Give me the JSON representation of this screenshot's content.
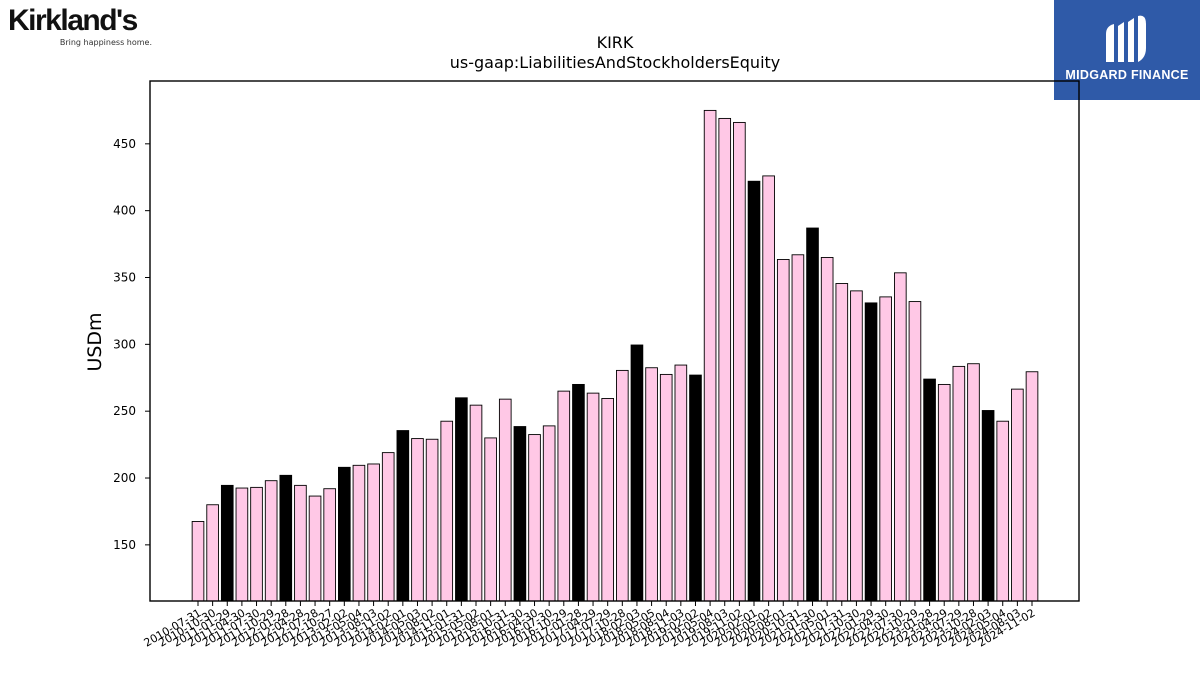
{
  "logos": {
    "kirklands": {
      "name": "Kirkland's",
      "tagline": "Bring happiness home."
    },
    "midgard": {
      "name": "MIDGARD FINANCE"
    }
  },
  "colors": {
    "annual": "#000000",
    "quarter": "#ffc8e6",
    "outline": "#000000"
  },
  "chart_data": {
    "type": "bar",
    "title": "KIRK",
    "subtitle": "us-gaap:LiabilitiesAndStockholdersEquity",
    "xlabel": "",
    "ylabel": "USDm",
    "ylim": [
      108,
      497
    ],
    "yticks": [
      150,
      200,
      250,
      300,
      350,
      400,
      450
    ],
    "grid": false,
    "categories": [
      "2010-07-31",
      "2010-10-30",
      "2011-01-29",
      "2011-04-30",
      "2011-07-30",
      "2011-10-29",
      "2012-01-28",
      "2012-04-28",
      "2012-07-28",
      "2012-10-27",
      "2013-02-02",
      "2013-05-04",
      "2013-08-03",
      "2013-11-02",
      "2014-02-01",
      "2014-05-03",
      "2014-08-02",
      "2014-11-01",
      "2015-01-31",
      "2015-05-02",
      "2015-08-01",
      "2015-10-31",
      "2016-01-30",
      "2016-04-30",
      "2016-07-30",
      "2016-10-29",
      "2017-01-28",
      "2017-04-29",
      "2017-07-29",
      "2017-10-28",
      "2018-02-03",
      "2018-05-05",
      "2018-08-04",
      "2018-11-03",
      "2019-02-02",
      "2019-05-04",
      "2019-08-03",
      "2019-11-02",
      "2020-02-01",
      "2020-05-02",
      "2020-08-01",
      "2020-10-31",
      "2021-01-30",
      "2021-05-01",
      "2021-07-31",
      "2021-10-30",
      "2022-01-29",
      "2022-04-30",
      "2022-07-30",
      "2022-10-29",
      "2023-01-28",
      "2023-04-29",
      "2023-07-29",
      "2023-10-28",
      "2024-02-03",
      "2024-05-04",
      "2024-08-03",
      "2024-11-02"
    ],
    "values": [
      167.5,
      180,
      194.5,
      192.5,
      193,
      198,
      202,
      194.5,
      186.5,
      192,
      208,
      209.5,
      210.5,
      219,
      235.5,
      229.5,
      229,
      242.5,
      260,
      254.5,
      230,
      259,
      238.5,
      232.5,
      239,
      265,
      270,
      263.5,
      259.5,
      280.5,
      299.5,
      282.5,
      277.5,
      284.5,
      277,
      475,
      469,
      466,
      422,
      426,
      363.5,
      367,
      387,
      365,
      345.5,
      340,
      331,
      335.5,
      353.5,
      332,
      274,
      270,
      283.5,
      285.5,
      250.5,
      242.5,
      266.5,
      279.5
    ],
    "fiscal_year_end": [
      false,
      false,
      true,
      false,
      false,
      false,
      true,
      false,
      false,
      false,
      true,
      false,
      false,
      false,
      true,
      false,
      false,
      false,
      true,
      false,
      false,
      false,
      true,
      false,
      false,
      false,
      true,
      false,
      false,
      false,
      true,
      false,
      false,
      false,
      true,
      false,
      false,
      false,
      true,
      false,
      false,
      false,
      true,
      false,
      false,
      false,
      true,
      false,
      false,
      false,
      true,
      false,
      false,
      false,
      true,
      false,
      false,
      false
    ]
  }
}
